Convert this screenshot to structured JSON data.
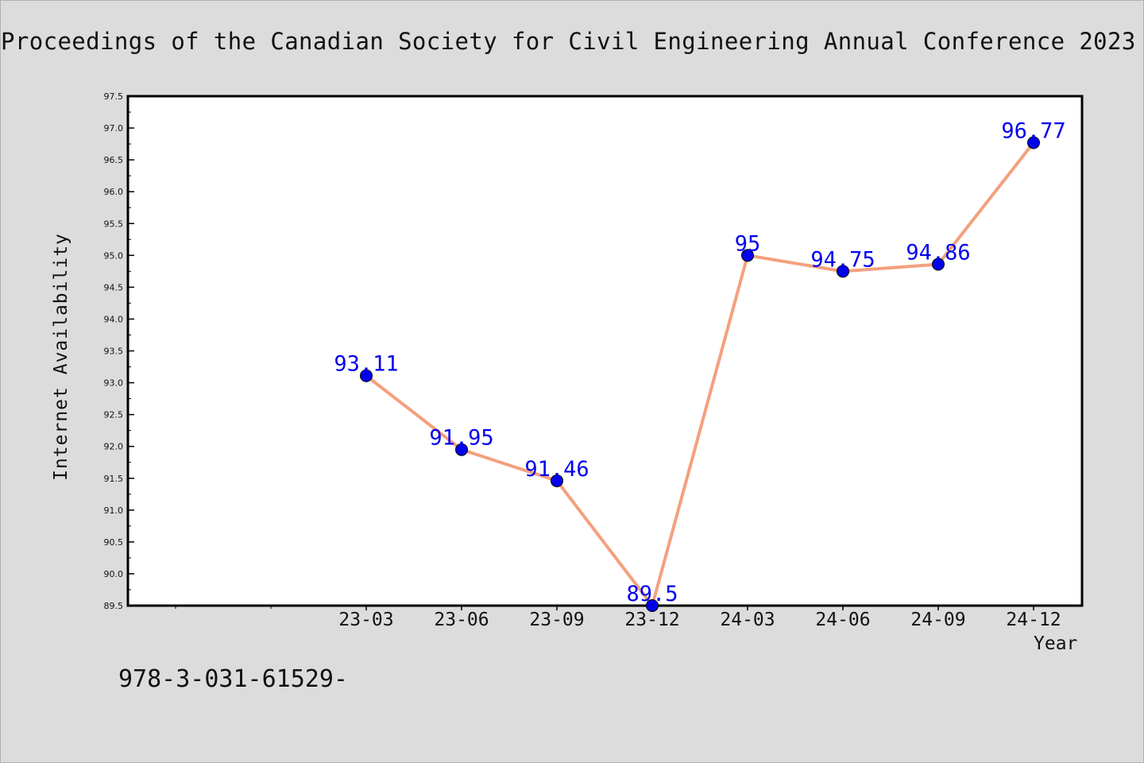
{
  "header": {
    "title": "Proceedings of the Canadian Society for Civil Engineering Annual Conference 2023"
  },
  "footer": {
    "text": "978-3-031-61529-"
  },
  "chart_data": {
    "type": "line",
    "xlabel": "Year",
    "ylabel": "Internet Availability",
    "categories": [
      "23-03",
      "23-06",
      "23-09",
      "23-12",
      "24-03",
      "24-06",
      "24-09",
      "24-12"
    ],
    "series": [
      {
        "values": [
          93.11,
          91.95,
          91.46,
          89.5,
          95,
          94.75,
          94.86,
          96.77
        ]
      }
    ],
    "data_labels": [
      "93.11",
      "91.95",
      "91.46",
      "89.5",
      "95",
      "94.75",
      "94.86",
      "96.77"
    ],
    "ylim": [
      89.5,
      97.5
    ],
    "yticks": [
      "89.5",
      "90.0",
      "90.5",
      "91.0",
      "91.5",
      "92.0",
      "92.5",
      "93.0",
      "93.5",
      "94.0",
      "94.5",
      "95.0",
      "95.5",
      "96.0",
      "96.5",
      "97.0",
      "97.5"
    ],
    "grid": false,
    "line_color": "#f4a07e",
    "marker_color": "#0000ee",
    "label_color": "#0000ee"
  }
}
